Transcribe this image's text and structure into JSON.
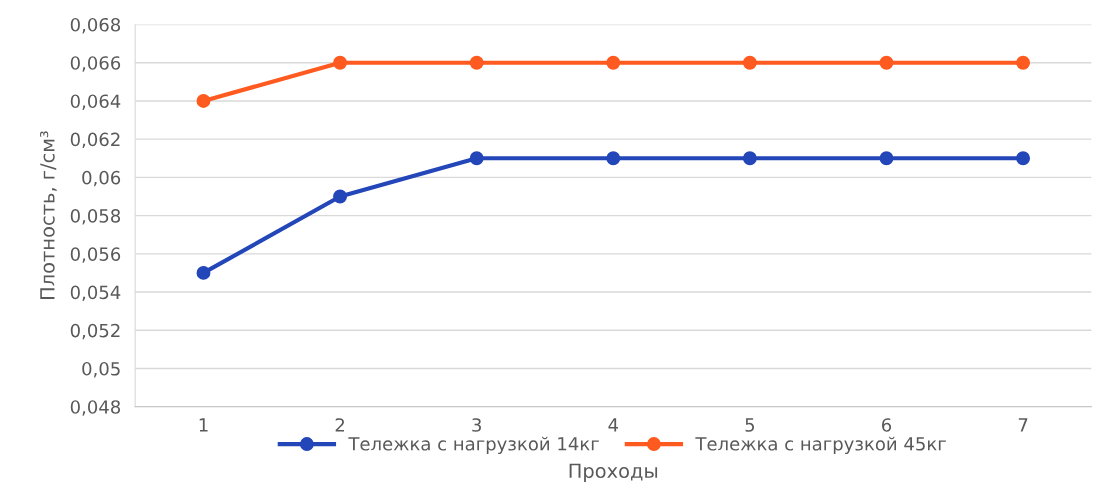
{
  "chart_data": {
    "type": "line",
    "xlabel": "Проходы",
    "ylabel": "Плотность, г/см³",
    "categories": [
      "1",
      "2",
      "3",
      "4",
      "5",
      "6",
      "7"
    ],
    "series": [
      {
        "name": "Тележка с нагрузкой 14кг",
        "color": "#2346b9",
        "values": [
          0.055,
          0.059,
          0.061,
          0.061,
          0.061,
          0.061,
          0.061
        ]
      },
      {
        "name": "Тележка с нагрузкой 45кг",
        "color": "#ff5a1f",
        "values": [
          0.064,
          0.066,
          0.066,
          0.066,
          0.066,
          0.066,
          0.066
        ]
      }
    ],
    "ylim": [
      0.048,
      0.068
    ],
    "yticks": [
      {
        "value": 0.048,
        "label": "0,048"
      },
      {
        "value": 0.05,
        "label": "0,05"
      },
      {
        "value": 0.052,
        "label": "0,052"
      },
      {
        "value": 0.054,
        "label": "0,054"
      },
      {
        "value": 0.056,
        "label": "0,056"
      },
      {
        "value": 0.058,
        "label": "0,058"
      },
      {
        "value": 0.06,
        "label": "0,06"
      },
      {
        "value": 0.062,
        "label": "0,062"
      },
      {
        "value": 0.064,
        "label": "0,064"
      },
      {
        "value": 0.066,
        "label": "0,066"
      },
      {
        "value": 0.068,
        "label": "0,068"
      }
    ],
    "grid": "y",
    "legend": "bottom",
    "marker": "circle",
    "line_style": "solid"
  }
}
